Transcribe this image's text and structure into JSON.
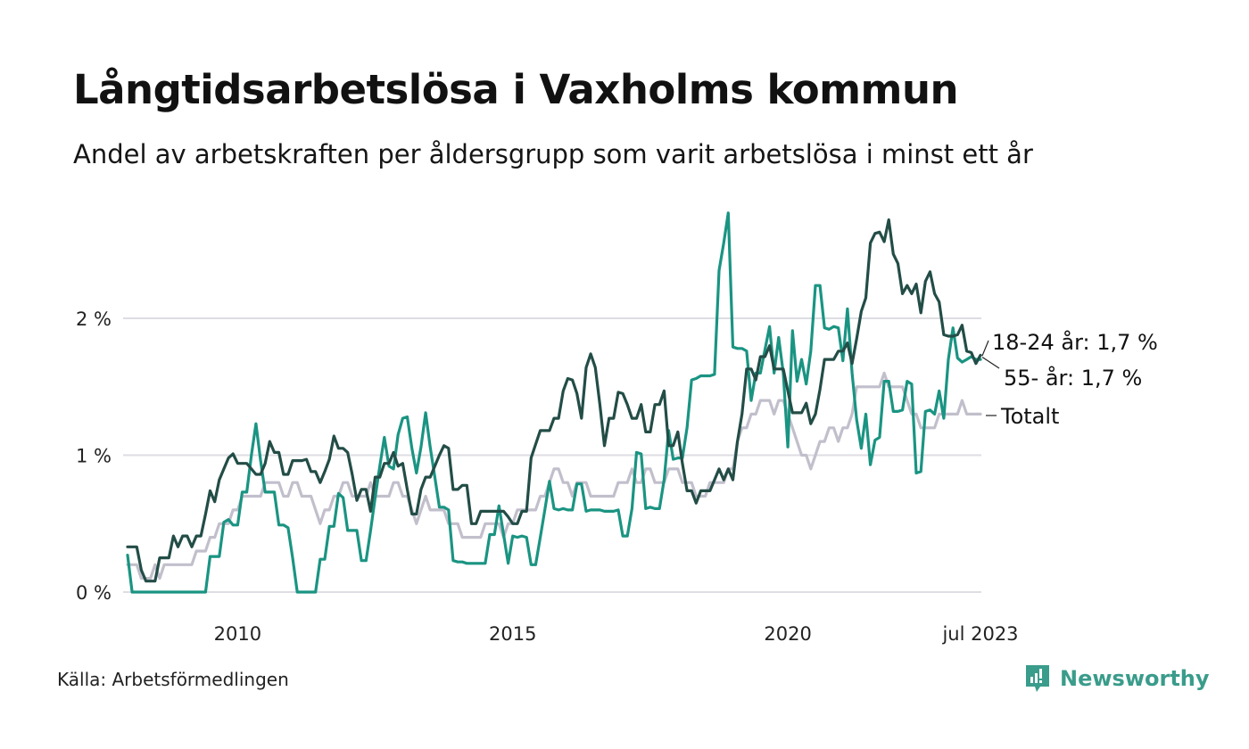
{
  "header": {
    "title": "Långtidsarbetslösa i Vaxholms kommun",
    "subtitle": "Andel av arbetskraften per åldersgrupp som varit arbetslösa i minst ett år"
  },
  "footer": {
    "source": "Källa: Arbetsförmedlingen",
    "brand": "Newsworthy",
    "brand_color": "#3a9c8b"
  },
  "chart_data": {
    "type": "line",
    "title": "Långtidsarbetslösa i Vaxholms kommun",
    "subtitle": "Andel av arbetskraften per åldersgrupp som varit arbetslösa i minst ett år",
    "xlabel": "",
    "ylabel": "",
    "x_start": "2008-01",
    "x_end": "2023-07",
    "x_frequency": "monthly",
    "ylim": [
      0,
      2.8
    ],
    "grid": true,
    "y_ticks": [
      {
        "value": 0,
        "label": "0 %"
      },
      {
        "value": 1,
        "label": "1 %"
      },
      {
        "value": 2,
        "label": "2 %"
      }
    ],
    "x_ticks": [
      {
        "month_index": 24,
        "label": "2010"
      },
      {
        "month_index": 84,
        "label": "2015"
      },
      {
        "month_index": 144,
        "label": "2020"
      },
      {
        "month_index": 186,
        "label": "jul 2023"
      }
    ],
    "legend_placement": "direct-labels-right",
    "series": [
      {
        "name": "Totalt",
        "label": "Totalt",
        "color": "#c2bfcc",
        "values": [
          0.2,
          0.2,
          0.2,
          0.1,
          0.1,
          0.1,
          0.2,
          0.1,
          0.2,
          0.2,
          0.2,
          0.2,
          0.2,
          0.2,
          0.2,
          0.3,
          0.3,
          0.3,
          0.4,
          0.4,
          0.5,
          0.5,
          0.5,
          0.6,
          0.6,
          0.7,
          0.7,
          0.7,
          0.7,
          0.7,
          0.8,
          0.8,
          0.8,
          0.8,
          0.7,
          0.7,
          0.8,
          0.8,
          0.7,
          0.7,
          0.7,
          0.6,
          0.5,
          0.6,
          0.6,
          0.7,
          0.7,
          0.8,
          0.8,
          0.7,
          0.7,
          0.7,
          0.7,
          0.8,
          0.7,
          0.7,
          0.7,
          0.7,
          0.8,
          0.8,
          0.7,
          0.7,
          0.6,
          0.5,
          0.6,
          0.7,
          0.6,
          0.6,
          0.6,
          0.6,
          0.5,
          0.5,
          0.5,
          0.4,
          0.4,
          0.4,
          0.4,
          0.4,
          0.5,
          0.5,
          0.5,
          0.5,
          0.4,
          0.5,
          0.5,
          0.6,
          0.6,
          0.6,
          0.6,
          0.6,
          0.7,
          0.7,
          0.8,
          0.9,
          0.9,
          0.8,
          0.8,
          0.7,
          0.8,
          0.8,
          0.8,
          0.7,
          0.7,
          0.7,
          0.7,
          0.7,
          0.7,
          0.8,
          0.8,
          0.8,
          0.9,
          0.8,
          0.8,
          0.9,
          0.9,
          0.8,
          0.8,
          0.8,
          0.9,
          0.9,
          0.9,
          0.8,
          0.8,
          0.8,
          0.7,
          0.7,
          0.7,
          0.8,
          0.8,
          0.8,
          0.8,
          0.9,
          0.9,
          1.1,
          1.2,
          1.2,
          1.3,
          1.3,
          1.4,
          1.4,
          1.4,
          1.3,
          1.4,
          1.4,
          1.3,
          1.2,
          1.1,
          1.0,
          1.0,
          0.9,
          1.0,
          1.1,
          1.1,
          1.2,
          1.2,
          1.1,
          1.2,
          1.2,
          1.3,
          1.5,
          1.5,
          1.5,
          1.5,
          1.5,
          1.5,
          1.6,
          1.5,
          1.5,
          1.5,
          1.5,
          1.4,
          1.3,
          1.3,
          1.2,
          1.2,
          1.2,
          1.2,
          1.3,
          1.3,
          1.3,
          1.3,
          1.3,
          1.4,
          1.3,
          1.3,
          1.3,
          1.3
        ]
      },
      {
        "name": "18-24 år",
        "label": "18-24 år: 1,7 %",
        "color": "#1a9482",
        "values": [
          0.27,
          0,
          0,
          0,
          0,
          0,
          0,
          0,
          0,
          0,
          0,
          0,
          0,
          0,
          0,
          0,
          0,
          0,
          0.26,
          0.26,
          0.26,
          0.51,
          0.53,
          0.49,
          0.49,
          0.73,
          0.73,
          1.0,
          1.23,
          0.96,
          0.73,
          0.73,
          0.73,
          0.49,
          0.49,
          0.47,
          0.25,
          0,
          0,
          0,
          0,
          0,
          0.24,
          0.24,
          0.48,
          0.48,
          0.72,
          0.69,
          0.45,
          0.45,
          0.45,
          0.23,
          0.23,
          0.45,
          0.69,
          0.92,
          1.13,
          0.92,
          0.9,
          1.15,
          1.27,
          1.28,
          1.05,
          0.87,
          1.06,
          1.31,
          1.06,
          0.84,
          0.62,
          0.62,
          0.6,
          0.23,
          0.22,
          0.22,
          0.21,
          0.21,
          0.21,
          0.21,
          0.21,
          0.42,
          0.42,
          0.63,
          0.42,
          0.21,
          0.41,
          0.4,
          0.41,
          0.4,
          0.2,
          0.2,
          0.4,
          0.6,
          0.81,
          0.61,
          0.6,
          0.61,
          0.6,
          0.6,
          0.79,
          0.79,
          0.59,
          0.6,
          0.6,
          0.6,
          0.59,
          0.59,
          0.59,
          0.6,
          0.41,
          0.41,
          0.61,
          1.02,
          1.01,
          0.61,
          0.62,
          0.61,
          0.61,
          0.82,
          1.18,
          0.97,
          0.98,
          0.98,
          1.2,
          1.55,
          1.56,
          1.58,
          1.58,
          1.58,
          1.59,
          2.35,
          2.55,
          2.77,
          1.79,
          1.78,
          1.78,
          1.76,
          1.4,
          1.6,
          1.6,
          1.77,
          1.94,
          1.6,
          1.86,
          1.6,
          1.06,
          1.91,
          1.54,
          1.7,
          1.52,
          1.76,
          2.24,
          2.24,
          1.93,
          1.92,
          1.94,
          1.93,
          1.69,
          2.07,
          1.6,
          1.26,
          1.05,
          1.3,
          0.93,
          1.11,
          1.13,
          1.54,
          1.54,
          1.32,
          1.32,
          1.33,
          1.54,
          1.52,
          0.87,
          0.88,
          1.32,
          1.33,
          1.3,
          1.47,
          1.27,
          1.7,
          1.93,
          1.71,
          1.68,
          1.7,
          1.72,
          1.7,
          1.7
        ]
      },
      {
        "name": "55- år",
        "label": "55- år: 1,7 %",
        "color": "#234d47",
        "values": [
          0.33,
          0.33,
          0.33,
          0.16,
          0.08,
          0.08,
          0.08,
          0.25,
          0.25,
          0.25,
          0.41,
          0.33,
          0.41,
          0.41,
          0.33,
          0.41,
          0.41,
          0.57,
          0.74,
          0.66,
          0.82,
          0.9,
          0.98,
          1.01,
          0.94,
          0.94,
          0.94,
          0.9,
          0.86,
          0.86,
          0.94,
          1.1,
          1.02,
          1.02,
          0.86,
          0.86,
          0.96,
          0.96,
          0.96,
          0.97,
          0.88,
          0.88,
          0.8,
          0.88,
          0.97,
          1.14,
          1.05,
          1.05,
          1.02,
          0.86,
          0.67,
          0.75,
          0.75,
          0.59,
          0.84,
          0.84,
          0.94,
          0.94,
          1.02,
          0.92,
          0.94,
          0.75,
          0.57,
          0.57,
          0.75,
          0.84,
          0.84,
          0.92,
          1.0,
          1.07,
          1.05,
          0.75,
          0.75,
          0.78,
          0.78,
          0.5,
          0.5,
          0.59,
          0.59,
          0.59,
          0.59,
          0.59,
          0.59,
          0.55,
          0.5,
          0.5,
          0.59,
          0.59,
          0.98,
          1.08,
          1.18,
          1.18,
          1.18,
          1.27,
          1.27,
          1.47,
          1.56,
          1.55,
          1.45,
          1.27,
          1.64,
          1.74,
          1.64,
          1.37,
          1.07,
          1.27,
          1.27,
          1.46,
          1.45,
          1.37,
          1.27,
          1.27,
          1.37,
          1.17,
          1.17,
          1.37,
          1.37,
          1.47,
          1.07,
          1.07,
          1.17,
          0.94,
          0.74,
          0.74,
          0.65,
          0.74,
          0.74,
          0.74,
          0.82,
          0.9,
          0.82,
          0.9,
          0.82,
          1.1,
          1.3,
          1.63,
          1.63,
          1.55,
          1.72,
          1.72,
          1.8,
          1.63,
          1.63,
          1.63,
          1.47,
          1.31,
          1.31,
          1.31,
          1.38,
          1.23,
          1.3,
          1.48,
          1.7,
          1.7,
          1.7,
          1.76,
          1.76,
          1.82,
          1.67,
          1.85,
          2.05,
          2.15,
          2.55,
          2.62,
          2.63,
          2.56,
          2.72,
          2.47,
          2.4,
          2.18,
          2.24,
          2.18,
          2.25,
          2.04,
          2.27,
          2.34,
          2.18,
          2.12,
          1.88,
          1.87,
          1.87,
          1.88,
          1.95,
          1.76,
          1.75,
          1.67,
          1.73
        ]
      }
    ]
  }
}
